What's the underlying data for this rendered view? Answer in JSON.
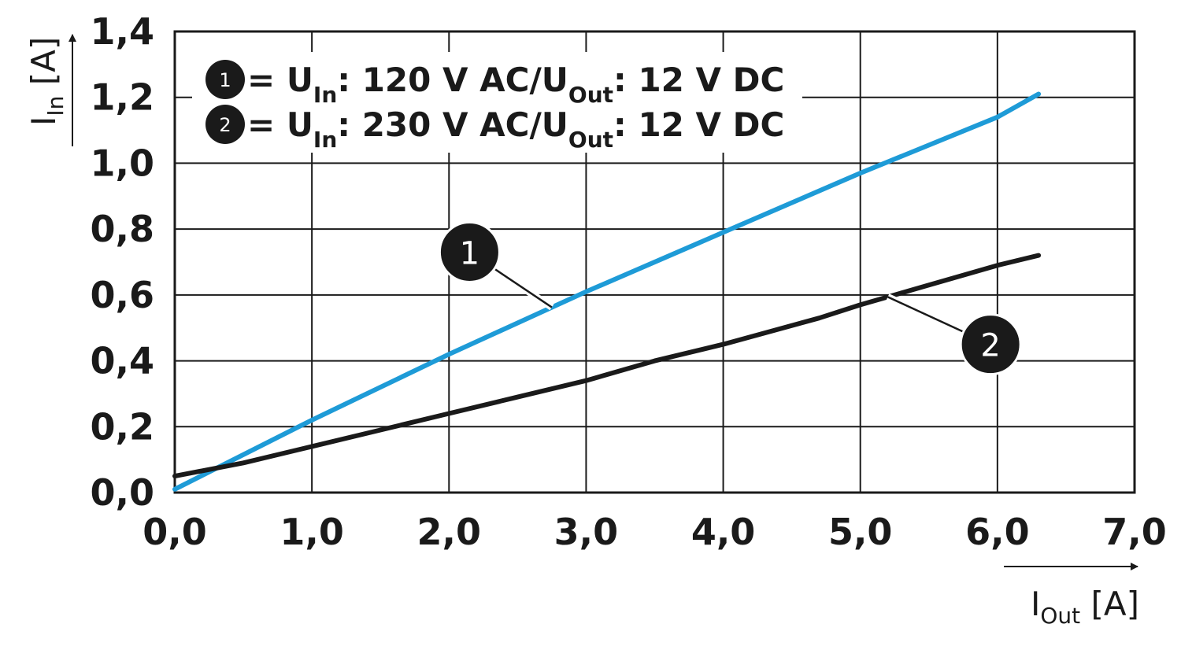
{
  "chart_data": {
    "type": "line",
    "xlim": [
      0,
      7
    ],
    "ylim": [
      0,
      1.4
    ],
    "x_ticks": [
      "0,0",
      "1,0",
      "2,0",
      "3,0",
      "4,0",
      "5,0",
      "6,0",
      "7,0"
    ],
    "y_ticks": [
      "0,0",
      "0,2",
      "0,4",
      "0,6",
      "0,8",
      "1,0",
      "1,2",
      "1,4"
    ],
    "grid": true,
    "xlabel": {
      "main": "I",
      "sub": "Out",
      "unit": " [A]"
    },
    "ylabel": {
      "main": "I",
      "sub": "In",
      "unit": " [A]"
    },
    "legend_position": "top-left",
    "series": [
      {
        "name": "1",
        "legend": {
          "marker": "1",
          "eq": " = U",
          "sub_in": "In",
          "mid": ": 120 V AC/U",
          "sub_out": "Out",
          "end": ": 12 V DC"
        },
        "color": "#1e9bd7",
        "x": [
          0,
          1,
          2,
          3,
          4,
          5,
          6,
          6.3
        ],
        "y": [
          0.01,
          0.22,
          0.42,
          0.61,
          0.79,
          0.97,
          1.14,
          1.21
        ]
      },
      {
        "name": "2",
        "legend": {
          "marker": "2",
          "eq": " = U",
          "sub_in": "In",
          "mid": ": 230 V AC/U",
          "sub_out": "Out",
          "end": ": 12 V DC"
        },
        "color": "#1a1a1a",
        "x": [
          0,
          0.5,
          1,
          1.5,
          2,
          2.5,
          3,
          3.5,
          4,
          4.7,
          5,
          5.5,
          6,
          6.3
        ],
        "y": [
          0.05,
          0.09,
          0.14,
          0.19,
          0.24,
          0.29,
          0.34,
          0.4,
          0.45,
          0.53,
          0.57,
          0.63,
          0.69,
          0.72
        ]
      }
    ],
    "callouts": [
      {
        "label": "1",
        "series": 0,
        "at_x": 2.75,
        "bubble": [
          2.15,
          0.73
        ]
      },
      {
        "label": "2",
        "series": 1,
        "at_x": 5.2,
        "bubble": [
          5.95,
          0.45
        ]
      }
    ]
  }
}
